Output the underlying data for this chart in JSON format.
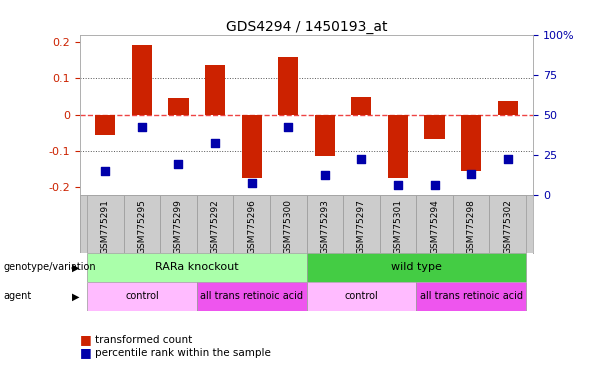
{
  "title": "GDS4294 / 1450193_at",
  "samples": [
    "GSM775291",
    "GSM775295",
    "GSM775299",
    "GSM775292",
    "GSM775296",
    "GSM775300",
    "GSM775293",
    "GSM775297",
    "GSM775301",
    "GSM775294",
    "GSM775298",
    "GSM775302"
  ],
  "red_bars": [
    -0.055,
    0.19,
    0.045,
    0.135,
    -0.175,
    0.158,
    -0.115,
    0.048,
    -0.175,
    -0.068,
    -0.155,
    0.038
  ],
  "blue_dots_pct": [
    15,
    42,
    19,
    32,
    7,
    42,
    12,
    22,
    6,
    6,
    13,
    22
  ],
  "ylim_left": [
    -0.22,
    0.22
  ],
  "ylim_right": [
    0,
    100
  ],
  "yticks_left": [
    -0.2,
    -0.1,
    0.0,
    0.1,
    0.2
  ],
  "yticks_right": [
    0,
    25,
    50,
    75,
    100
  ],
  "ytick_labels_right": [
    "0",
    "25",
    "50",
    "75",
    "100%"
  ],
  "ytick_labels_left": [
    "-0.2",
    "-0.1",
    "0",
    "0.1",
    "0.2"
  ],
  "hline_zero_color": "#ee4444",
  "hline_dotted_color": "#555555",
  "bar_color": "#cc2200",
  "dot_color": "#0000aa",
  "genotype_groups": [
    {
      "label": "RARa knockout",
      "start": 0,
      "end": 6,
      "color": "#aaffaa"
    },
    {
      "label": "wild type",
      "start": 6,
      "end": 12,
      "color": "#44cc44"
    }
  ],
  "agent_groups": [
    {
      "label": "control",
      "start": 0,
      "end": 3,
      "color": "#ffbbff"
    },
    {
      "label": "all trans retinoic acid",
      "start": 3,
      "end": 6,
      "color": "#ee55ee"
    },
    {
      "label": "control",
      "start": 6,
      "end": 9,
      "color": "#ffbbff"
    },
    {
      "label": "all trans retinoic acid",
      "start": 9,
      "end": 12,
      "color": "#ee55ee"
    }
  ],
  "legend_red": "transformed count",
  "legend_blue": "percentile rank within the sample",
  "bar_width": 0.55,
  "dot_size": 28,
  "background_color": "#ffffff",
  "tick_label_color_left": "#cc2200",
  "tick_label_color_right": "#0000aa",
  "label_color_left": "genotype/variation",
  "label_color_agent": "agent"
}
